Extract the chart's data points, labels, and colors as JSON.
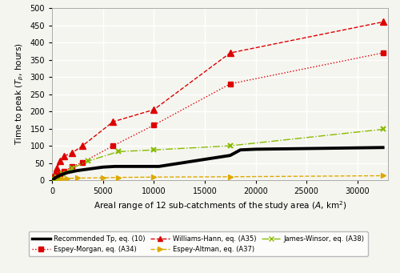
{
  "xlim": [
    0,
    33000
  ],
  "ylim": [
    0,
    500
  ],
  "xticks": [
    0,
    5000,
    10000,
    15000,
    20000,
    25000,
    30000
  ],
  "yticks": [
    0,
    50,
    100,
    150,
    200,
    250,
    300,
    350,
    400,
    450,
    500
  ],
  "recommended_x": [
    0,
    200,
    400,
    700,
    1000,
    1500,
    2500,
    5000,
    6200,
    9800,
    10500,
    17500,
    18500,
    20000,
    32500
  ],
  "recommended_y": [
    0,
    4,
    8,
    13,
    17,
    22,
    28,
    38,
    40,
    40,
    40,
    72,
    88,
    90,
    95
  ],
  "espey_morgan_x": [
    100,
    300,
    500,
    800,
    1200,
    2000,
    3000,
    6000,
    10000,
    17500,
    32500
  ],
  "espey_morgan_y": [
    5,
    8,
    12,
    18,
    25,
    40,
    52,
    100,
    160,
    280,
    370
  ],
  "williams_hann_x": [
    100,
    300,
    500,
    800,
    1200,
    2000,
    3000,
    6000,
    10000,
    17500,
    32500
  ],
  "williams_hann_y": [
    10,
    20,
    35,
    55,
    70,
    80,
    100,
    170,
    205,
    370,
    460
  ],
  "espey_altman_x": [
    0,
    200,
    400,
    700,
    1000,
    1500,
    2500,
    5000,
    6500,
    10000,
    17500,
    32500
  ],
  "espey_altman_y": [
    0,
    1,
    2,
    3,
    4,
    5,
    6,
    7,
    8,
    9,
    10,
    13
  ],
  "james_winsor_x": [
    200,
    500,
    1000,
    2000,
    3500,
    6500,
    10000,
    17500,
    32500
  ],
  "james_winsor_y": [
    3,
    10,
    18,
    35,
    55,
    83,
    88,
    100,
    148
  ],
  "color_recommended": "#000000",
  "color_espey_morgan": "#dd0000",
  "color_williams_hann": "#dd0000",
  "color_espey_altman": "#ddaa00",
  "color_james_winsor": "#88bb00",
  "bg_color": "#f5f5f0",
  "fig_width": 5.0,
  "fig_height": 3.41,
  "dpi": 100
}
